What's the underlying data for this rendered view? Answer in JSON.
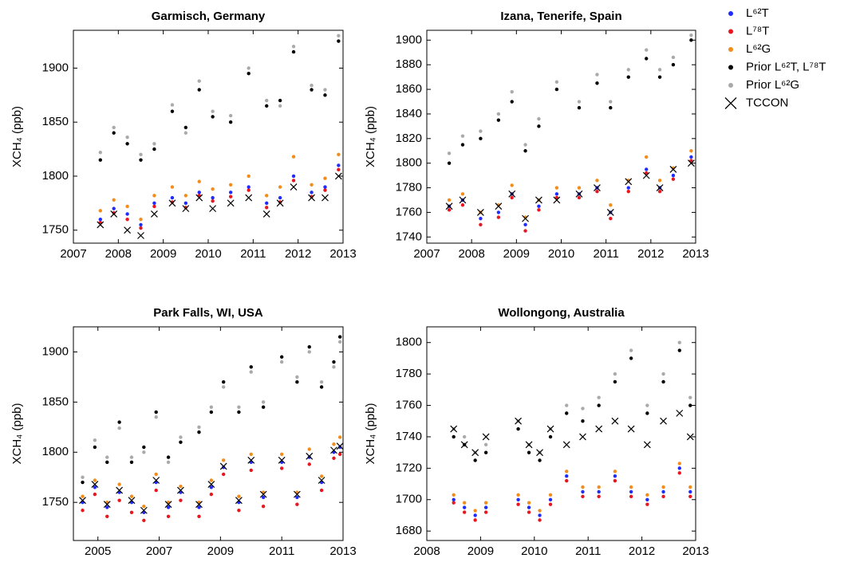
{
  "chart_data": [
    {
      "type": "scatter",
      "title": "Garmisch, Germany",
      "y_label": "XCH₄ (ppb)",
      "x": [
        2007.6,
        2007.9,
        2008.2,
        2008.5,
        2008.8,
        2009.2,
        2009.5,
        2009.8,
        2010.1,
        2010.5,
        2010.9,
        2011.3,
        2011.6,
        2011.9,
        2012.3,
        2012.6,
        2012.9
      ],
      "xlim": [
        2007,
        2013
      ],
      "xticks": [
        2007,
        2008,
        2009,
        2010,
        2011,
        2012,
        2013
      ],
      "ylim": [
        1738,
        1935
      ],
      "yticks": [
        1750,
        1800,
        1850,
        1900
      ],
      "series": [
        {
          "name": "L⁶²T",
          "color": "#1f2bff",
          "marker": "dot",
          "values": [
            1760,
            1770,
            1765,
            1755,
            1775,
            1780,
            1775,
            1785,
            1780,
            1785,
            1790,
            1775,
            1780,
            1800,
            1785,
            1790,
            1810
          ]
        },
        {
          "name": "L⁷⁸T",
          "color": "#e8171f",
          "marker": "dot",
          "values": [
            1757,
            1766,
            1760,
            1752,
            1772,
            1776,
            1771,
            1782,
            1777,
            1781,
            1787,
            1771,
            1776,
            1796,
            1781,
            1787,
            1806
          ]
        },
        {
          "name": "L⁶²G",
          "color": "#f28c1a",
          "marker": "dot",
          "values": [
            1768,
            1778,
            1772,
            1760,
            1782,
            1790,
            1782,
            1795,
            1788,
            1792,
            1800,
            1782,
            1790,
            1818,
            1792,
            1798,
            1820
          ]
        },
        {
          "name": "Prior L⁶²T, L⁷⁸T",
          "color": "#000000",
          "marker": "dot",
          "values": [
            1815,
            1840,
            1830,
            1815,
            1825,
            1860,
            1845,
            1880,
            1855,
            1850,
            1895,
            1865,
            1870,
            1915,
            1880,
            1875,
            1925
          ]
        },
        {
          "name": "Prior L⁶²G",
          "color": "#aaaaaa",
          "marker": "dot",
          "values": [
            1822,
            1845,
            1836,
            1820,
            1830,
            1866,
            1840,
            1888,
            1860,
            1856,
            1900,
            1870,
            1865,
            1920,
            1884,
            1880,
            1930
          ]
        },
        {
          "name": "TCCON",
          "color": "#000000",
          "marker": "x",
          "values": [
            1755,
            1765,
            1750,
            1745,
            1765,
            1775,
            1770,
            1780,
            1770,
            1775,
            1780,
            1765,
            1775,
            1790,
            1780,
            1780,
            1800
          ]
        }
      ]
    },
    {
      "type": "scatter",
      "title": "Izana, Tenerife, Spain",
      "y_label": "XCH₄ (ppb)",
      "x": [
        2007.5,
        2007.8,
        2008.2,
        2008.6,
        2008.9,
        2009.2,
        2009.5,
        2009.9,
        2010.4,
        2010.8,
        2011.1,
        2011.5,
        2011.9,
        2012.2,
        2012.5,
        2012.9
      ],
      "xlim": [
        2007,
        2013
      ],
      "xticks": [
        2007,
        2008,
        2009,
        2010,
        2011,
        2012,
        2013
      ],
      "ylim": [
        1735,
        1908
      ],
      "yticks": [
        1740,
        1760,
        1780,
        1800,
        1820,
        1840,
        1860,
        1880,
        1900
      ],
      "series": [
        {
          "color": "#1f2bff",
          "marker": "dot",
          "values": [
            1765,
            1770,
            1755,
            1760,
            1775,
            1750,
            1765,
            1775,
            1775,
            1780,
            1760,
            1780,
            1795,
            1780,
            1790,
            1805
          ]
        },
        {
          "color": "#e8171f",
          "marker": "dot",
          "values": [
            1762,
            1766,
            1750,
            1756,
            1772,
            1745,
            1762,
            1772,
            1772,
            1777,
            1755,
            1777,
            1792,
            1777,
            1787,
            1802
          ]
        },
        {
          "color": "#f28c1a",
          "marker": "dot",
          "values": [
            1770,
            1775,
            1760,
            1766,
            1782,
            1756,
            1770,
            1780,
            1780,
            1786,
            1766,
            1786,
            1805,
            1786,
            1796,
            1810
          ]
        },
        {
          "color": "#000000",
          "marker": "dot",
          "values": [
            1800,
            1815,
            1820,
            1835,
            1850,
            1810,
            1830,
            1860,
            1845,
            1865,
            1845,
            1870,
            1885,
            1870,
            1880,
            1900
          ]
        },
        {
          "color": "#aaaaaa",
          "marker": "dot",
          "values": [
            1808,
            1822,
            1826,
            1840,
            1858,
            1815,
            1836,
            1866,
            1850,
            1872,
            1850,
            1876,
            1892,
            1876,
            1886,
            1904
          ]
        },
        {
          "color": "#000000",
          "marker": "x",
          "values": [
            1765,
            1770,
            1760,
            1765,
            1775,
            1755,
            1770,
            1770,
            1775,
            1780,
            1760,
            1785,
            1790,
            1780,
            1795,
            1800
          ]
        }
      ]
    },
    {
      "type": "scatter",
      "title": "Park Falls, WI, USA",
      "y_label": "XCH₄ (ppb)",
      "x": [
        2004.5,
        2004.9,
        2005.3,
        2005.7,
        2006.1,
        2006.5,
        2006.9,
        2007.3,
        2007.7,
        2008.3,
        2008.7,
        2009.1,
        2009.6,
        2010.0,
        2010.4,
        2011.0,
        2011.5,
        2011.9,
        2012.3,
        2012.7,
        2012.9
      ],
      "xlim": [
        2004.2,
        2013
      ],
      "xticks": [
        2005,
        2007,
        2009,
        2011,
        2013
      ],
      "ylim": [
        1712,
        1925
      ],
      "yticks": [
        1750,
        1800,
        1850,
        1900
      ],
      "series": [
        {
          "color": "#1f2bff",
          "marker": "dot",
          "values": [
            1750,
            1765,
            1745,
            1760,
            1750,
            1740,
            1770,
            1745,
            1760,
            1745,
            1765,
            1785,
            1750,
            1790,
            1755,
            1790,
            1755,
            1795,
            1770,
            1800,
            1805
          ]
        },
        {
          "color": "#e8171f",
          "marker": "dot",
          "values": [
            1742,
            1758,
            1736,
            1752,
            1740,
            1732,
            1762,
            1736,
            1752,
            1736,
            1758,
            1778,
            1742,
            1782,
            1746,
            1784,
            1748,
            1788,
            1762,
            1794,
            1798
          ]
        },
        {
          "color": "#f28c1a",
          "marker": "dot",
          "values": [
            1756,
            1772,
            1750,
            1768,
            1756,
            1746,
            1778,
            1750,
            1766,
            1750,
            1772,
            1792,
            1756,
            1798,
            1760,
            1798,
            1760,
            1803,
            1776,
            1808,
            1815
          ]
        },
        {
          "color": "#000000",
          "marker": "dot",
          "values": [
            1770,
            1805,
            1790,
            1830,
            1790,
            1805,
            1840,
            1795,
            1810,
            1820,
            1840,
            1870,
            1840,
            1885,
            1845,
            1895,
            1870,
            1905,
            1865,
            1890,
            1915
          ]
        },
        {
          "color": "#aaaaaa",
          "marker": "dot",
          "values": [
            1775,
            1812,
            1795,
            1824,
            1795,
            1800,
            1835,
            1790,
            1815,
            1825,
            1845,
            1865,
            1845,
            1880,
            1850,
            1890,
            1875,
            1900,
            1870,
            1885,
            1910
          ]
        },
        {
          "color": "#000000",
          "marker": "x",
          "values": [
            1752,
            1768,
            1748,
            1762,
            1752,
            1742,
            1772,
            1748,
            1762,
            1748,
            1768,
            1786,
            1752,
            1792,
            1758,
            1792,
            1758,
            1796,
            1772,
            1802,
            1806
          ]
        }
      ]
    },
    {
      "type": "scatter",
      "title": "Wollongong, Australia",
      "y_label": "XCH₄ (ppb)",
      "x": [
        2008.5,
        2008.7,
        2008.9,
        2009.1,
        2009.7,
        2009.9,
        2010.1,
        2010.3,
        2010.6,
        2010.9,
        2011.2,
        2011.5,
        2011.8,
        2012.1,
        2012.4,
        2012.7,
        2012.9
      ],
      "xlim": [
        2008,
        2013
      ],
      "xticks": [
        2008,
        2009,
        2010,
        2011,
        2012,
        2013
      ],
      "ylim": [
        1674,
        1810
      ],
      "yticks": [
        1680,
        1700,
        1720,
        1740,
        1760,
        1780,
        1800
      ],
      "series": [
        {
          "color": "#1f2bff",
          "marker": "dot",
          "values": [
            1700,
            1695,
            1690,
            1695,
            1700,
            1695,
            1690,
            1700,
            1715,
            1705,
            1705,
            1715,
            1705,
            1700,
            1705,
            1720,
            1705
          ]
        },
        {
          "color": "#e8171f",
          "marker": "dot",
          "values": [
            1698,
            1692,
            1687,
            1692,
            1697,
            1692,
            1687,
            1697,
            1712,
            1702,
            1702,
            1712,
            1702,
            1697,
            1702,
            1717,
            1702
          ]
        },
        {
          "color": "#f28c1a",
          "marker": "dot",
          "values": [
            1703,
            1698,
            1693,
            1698,
            1703,
            1698,
            1693,
            1703,
            1718,
            1708,
            1708,
            1718,
            1708,
            1703,
            1708,
            1723,
            1708
          ]
        },
        {
          "color": "#000000",
          "marker": "dot",
          "values": [
            1740,
            1735,
            1725,
            1730,
            1745,
            1730,
            1725,
            1740,
            1755,
            1750,
            1760,
            1775,
            1790,
            1755,
            1775,
            1795,
            1760
          ]
        },
        {
          "color": "#aaaaaa",
          "marker": "dot",
          "values": [
            1745,
            1740,
            1730,
            1735,
            1750,
            1735,
            1730,
            1745,
            1760,
            1758,
            1765,
            1780,
            1795,
            1760,
            1780,
            1800,
            1765
          ]
        },
        {
          "color": "#000000",
          "marker": "x",
          "values": [
            1745,
            1735,
            1730,
            1740,
            1750,
            1735,
            1730,
            1745,
            1735,
            1740,
            1745,
            1750,
            1745,
            1735,
            1750,
            1755,
            1740
          ]
        }
      ]
    }
  ]
}
